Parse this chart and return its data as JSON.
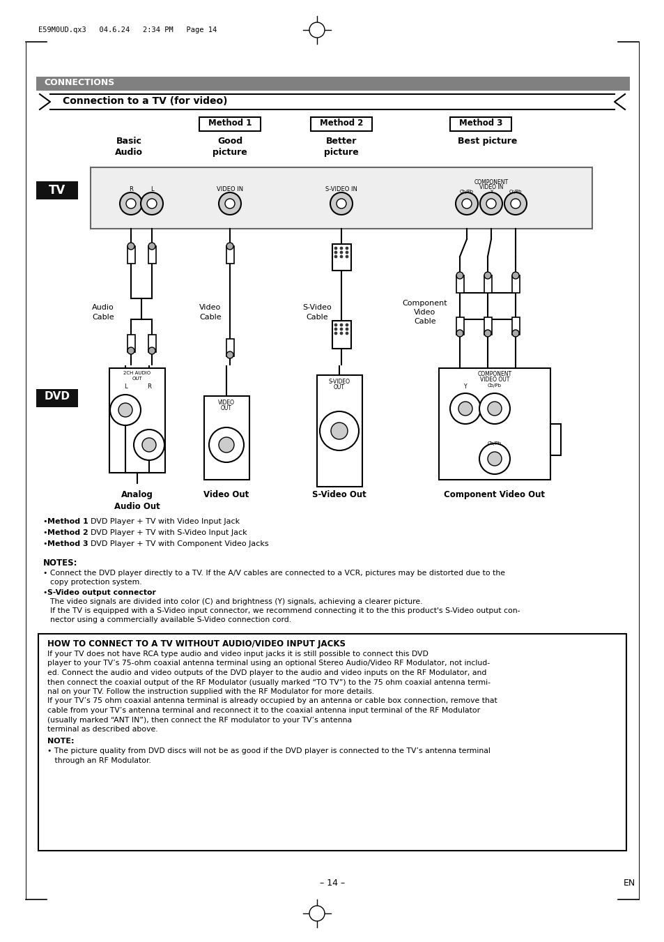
{
  "title_bar": "CONNECTIONS",
  "subtitle": "Connection to a TV (for video)",
  "header_file": "E59M0UD.qx3   04.6.24   2:34 PM   Page 14",
  "methods": [
    "Method 1",
    "Method 2",
    "Method 3"
  ],
  "quality_labels": [
    "Basic\nAudio",
    "Good\npicture",
    "Better\npicture",
    "Best picture"
  ],
  "tv_label": "TV",
  "dvd_label": "DVD",
  "cable_labels": [
    "Audio\nCable",
    "Video\nCable",
    "S-Video\nCable",
    "Component\nVideo\nCable"
  ],
  "out_labels": [
    "Analog\nAudio Out",
    "Video Out",
    "S-Video Out",
    "Component Video Out"
  ],
  "notes_title": "NOTES:",
  "bullet1_bold": "Method 1",
  "bullet1_rest": "  DVD Player + TV with Video Input Jack",
  "bullet2_bold": "Method 2",
  "bullet2_rest": "  DVD Player + TV with S-Video Input Jack",
  "bullet3_bold": "Method 3",
  "bullet3_rest": "  DVD Player + TV with Component Video Jacks",
  "notes_line1": "Connect the DVD player directly to a TV. If the A/V cables are connected to a VCR, pictures may be distorted due to the",
  "notes_line2": "copy protection system.",
  "notes_line3b": "S-Video output connector",
  "notes_line4": "The video signals are divided into color (C) and brightness (Y) signals, achieving a clearer picture.",
  "notes_line5": "If the TV is equipped with a S-Video input connector, we recommend connecting it to the this product's S-Video output con-",
  "notes_line6": "nector using a commercially available S-Video connection cord.",
  "box_title": "HOW TO CONNECT TO A TV WITHOUT AUDIO/VIDEO INPUT JACKS",
  "box_lines": [
    "If your TV does not have RCA type audio and video input jacks it is still possible to connect this DVD",
    "player to your TV’s 75-ohm coaxial antenna terminal using an optional Stereo Audio/Video RF Modulator, not includ-",
    "ed. Connect the audio and video outputs of the DVD player to the audio and video inputs on the RF Modulator, and",
    "then connect the coaxial output of the RF Modulator (usually marked “TO TV”) to the 75 ohm coaxial antenna termi-",
    "nal on your TV. Follow the instruction supplied with the RF Modulator for more details.",
    "If your TV’s 75 ohm coaxial antenna terminal is already occupied by an antenna or cable box connection, remove that",
    "cable from your TV’s antenna terminal and reconnect it to the coaxial antenna input terminal of the RF Modulator",
    "(usually marked “ANT IN”), then connect the RF modulator to your TV’s antenna",
    "terminal as described above."
  ],
  "box_note_label": "NOTE:",
  "box_note_line1": "• The picture quality from DVD discs will not be as good if the DVD player is connected to the TV’s antenna terminal",
  "box_note_line2": "   through an RF Modulator.",
  "page_number": "– 14 –",
  "page_en": "EN",
  "bg_color": "#ffffff",
  "title_bar_color": "#808080",
  "tv_dvd_bg": "#111111",
  "tv_dvd_text": "#ffffff",
  "tv_panel_bg": "#eeeeee",
  "tv_panel_ec": "#666666"
}
